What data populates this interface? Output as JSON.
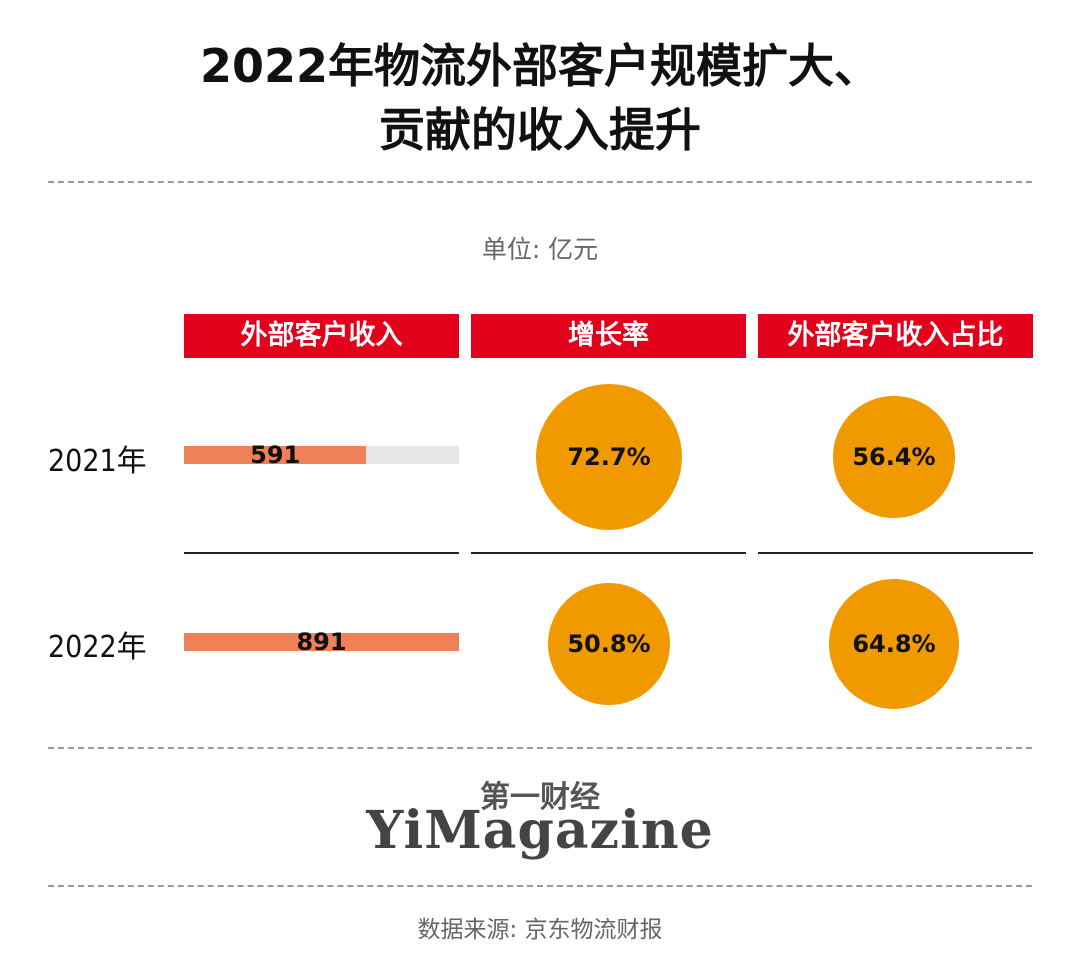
{
  "title_line1": "2022年物流外部客户规模扩大、",
  "title_line2": "贡献的收入提升",
  "unit": "单位: 亿元",
  "headers": [
    "外部客户收入",
    "增长率",
    "外部客户收入占比"
  ],
  "chart_data": {
    "type": "table",
    "rows": [
      {
        "year": "2021年",
        "revenue": 591,
        "revenue_label": "591",
        "growth": 72.7,
        "growth_label": "72.7%",
        "share": 56.4,
        "share_label": "56.4%"
      },
      {
        "year": "2022年",
        "revenue": 891,
        "revenue_label": "891",
        "growth": 50.8,
        "growth_label": "50.8%",
        "share": 64.8,
        "share_label": "64.8%"
      }
    ],
    "revenue_max": 891
  },
  "brand_cn": "第一财经",
  "brand_en": "YiMagazine",
  "source": "数据来源: 京东物流财报",
  "colors": {
    "header": "#e2001a",
    "bar": "#ef8158",
    "track": "#e6e6e6",
    "circle": "#f09a00"
  }
}
